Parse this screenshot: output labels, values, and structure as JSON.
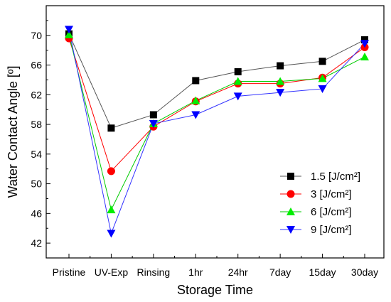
{
  "chart_data": {
    "type": "line",
    "xlabel": "Storage Time",
    "ylabel": "Water Contact Angle [º]",
    "categories": [
      "Pristine",
      "UV-Exp",
      "Rinsing",
      "1hr",
      "24hr",
      "7day",
      "15day",
      "30day"
    ],
    "ylim": [
      40,
      74
    ],
    "yticks": [
      42,
      46,
      50,
      54,
      58,
      62,
      66,
      70
    ],
    "grid": false,
    "legend_position": "bottom-right",
    "series": [
      {
        "name": "1.5 [J/cm²]",
        "marker": "square",
        "color": "#000000",
        "line_color": "#555555",
        "values": [
          70.2,
          57.5,
          59.3,
          63.9,
          65.1,
          65.9,
          66.5,
          69.4
        ]
      },
      {
        "name": "3 [J/cm²]",
        "marker": "circle",
        "color": "#ff0000",
        "line_color": "#ff0000",
        "values": [
          69.6,
          51.7,
          57.7,
          61.1,
          63.5,
          63.5,
          64.3,
          68.4
        ]
      },
      {
        "name": "6 [J/cm²]",
        "marker": "triangle-up",
        "color": "#00ee00",
        "line_color": "#00cc00",
        "values": [
          70.1,
          46.5,
          58.1,
          61.2,
          63.8,
          63.8,
          64.2,
          67.1
        ]
      },
      {
        "name": "9 [J/cm²]",
        "marker": "triangle-down",
        "color": "#0000ff",
        "line_color": "#3333ff",
        "values": [
          70.8,
          43.3,
          58.1,
          59.3,
          61.8,
          62.3,
          62.8,
          68.9
        ]
      }
    ]
  }
}
